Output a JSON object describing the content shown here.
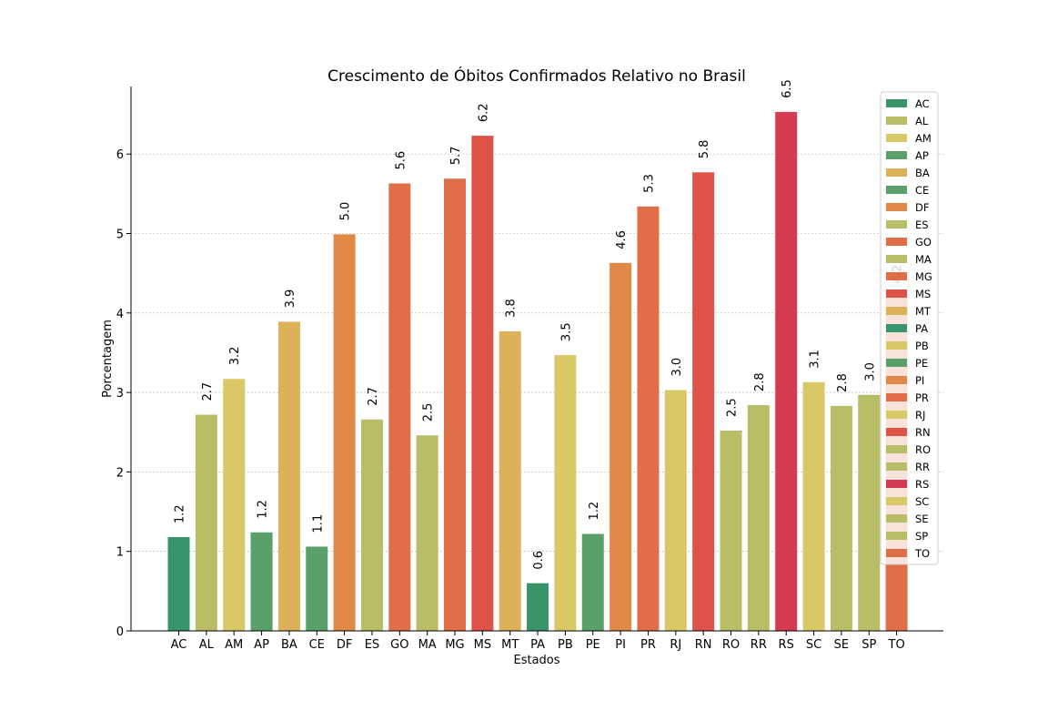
{
  "chart_data": {
    "type": "bar",
    "title": "Crescimento de Óbitos Confirmados Relativo no Brasil",
    "xlabel": "Estados",
    "ylabel": "Porcentagem",
    "categories": [
      "AC",
      "AL",
      "AM",
      "AP",
      "BA",
      "CE",
      "DF",
      "ES",
      "GO",
      "MA",
      "MG",
      "MS",
      "MT",
      "PA",
      "PB",
      "PE",
      "PI",
      "PR",
      "RJ",
      "RN",
      "RO",
      "RR",
      "RS",
      "SC",
      "SE",
      "SP",
      "TO"
    ],
    "values": [
      1.18,
      2.72,
      3.17,
      1.24,
      3.89,
      1.06,
      4.99,
      2.66,
      5.63,
      2.46,
      5.69,
      6.23,
      3.77,
      0.6,
      3.47,
      1.22,
      4.63,
      5.34,
      3.03,
      5.77,
      2.52,
      2.84,
      6.53,
      3.13,
      2.83,
      2.97,
      4.2
    ],
    "labels": [
      "1.2",
      "2.7",
      "3.2",
      "1.2",
      "3.9",
      "1.1",
      "5.0",
      "2.7",
      "5.6",
      "2.5",
      "5.7",
      "6.2",
      "3.8",
      "0.6",
      "3.5",
      "1.2",
      "4.6",
      "5.3",
      "3.0",
      "5.8",
      "2.5",
      "2.8",
      "6.5",
      "3.1",
      "2.8",
      "3.0",
      "4.2"
    ],
    "colors": [
      "#38946a",
      "#b8be65",
      "#d8c866",
      "#5aa06a",
      "#ddb157",
      "#5aa06a",
      "#e08947",
      "#b8be65",
      "#e06e47",
      "#b8be65",
      "#e06e47",
      "#de5247",
      "#ddb157",
      "#38946a",
      "#d8c866",
      "#5aa06a",
      "#e08947",
      "#e06e47",
      "#d8c866",
      "#de5247",
      "#b8be65",
      "#b8be65",
      "#d43a52",
      "#d8c866",
      "#b8be65",
      "#b8be65",
      "#e06e47"
    ],
    "yticks": [
      "0",
      "1",
      "2",
      "3",
      "4",
      "5",
      "6"
    ],
    "ylim": [
      0,
      6.85
    ],
    "grid": true,
    "legend_position": "top-right",
    "bar_alpha": 1.0
  }
}
